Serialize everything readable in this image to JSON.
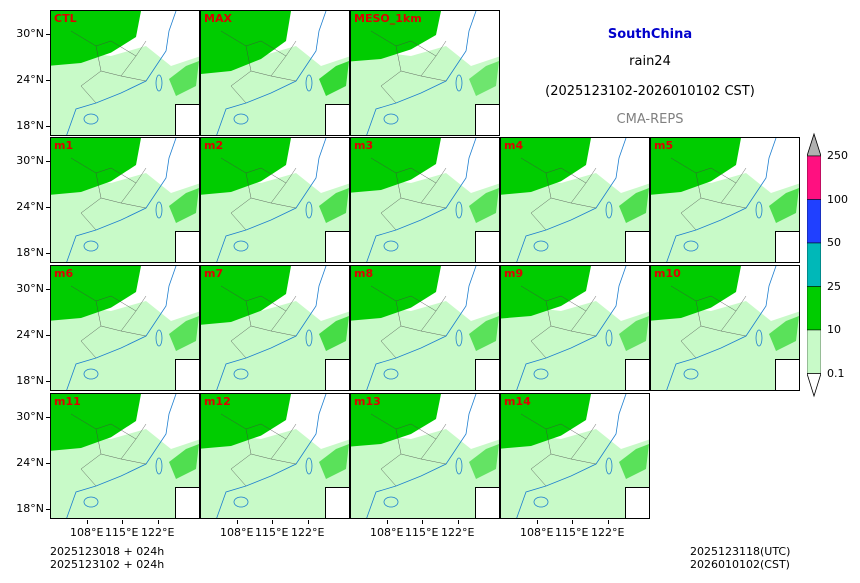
{
  "header": {
    "region": "SouthChina",
    "variable": "rain24",
    "period": "(2025123102-2026010102 CST)",
    "model": "CMA-REPS"
  },
  "panels": [
    {
      "label": "CTL",
      "intensity": 0.55
    },
    {
      "label": "MAX",
      "intensity": 0.75
    },
    {
      "label": "MESO_1km",
      "intensity": 0.45
    },
    {
      "label": "m1",
      "intensity": 0.6
    },
    {
      "label": "m2",
      "intensity": 0.6
    },
    {
      "label": "m3",
      "intensity": 0.55
    },
    {
      "label": "m4",
      "intensity": 0.6
    },
    {
      "label": "m5",
      "intensity": 0.6
    },
    {
      "label": "m6",
      "intensity": 0.55
    },
    {
      "label": "m7",
      "intensity": 0.65
    },
    {
      "label": "m8",
      "intensity": 0.55
    },
    {
      "label": "m9",
      "intensity": 0.5
    },
    {
      "label": "m10",
      "intensity": 0.55
    },
    {
      "label": "m11",
      "intensity": 0.6
    },
    {
      "label": "m12",
      "intensity": 0.55
    },
    {
      "label": "m13",
      "intensity": 0.5
    },
    {
      "label": "m14",
      "intensity": 0.55
    }
  ],
  "axes": {
    "lat_labels": [
      "30°N",
      "24°N",
      "18°N"
    ],
    "lon_labels": [
      "108°E",
      "115°E",
      "122°E"
    ]
  },
  "colorbar": {
    "levels": [
      "0.1",
      "10",
      "25",
      "50",
      "100",
      "250"
    ],
    "colors": [
      "#c8fac8",
      "#00cc00",
      "#00b8b8",
      "#2040ff",
      "#ff1080",
      "#b0b0b0"
    ]
  },
  "footer": {
    "init_utc_line": "2025123018  +  024h",
    "init_cst_line": "2025123102  +  024h",
    "valid_utc": "2025123118(UTC)",
    "valid_cst": "2026010102(CST)"
  }
}
